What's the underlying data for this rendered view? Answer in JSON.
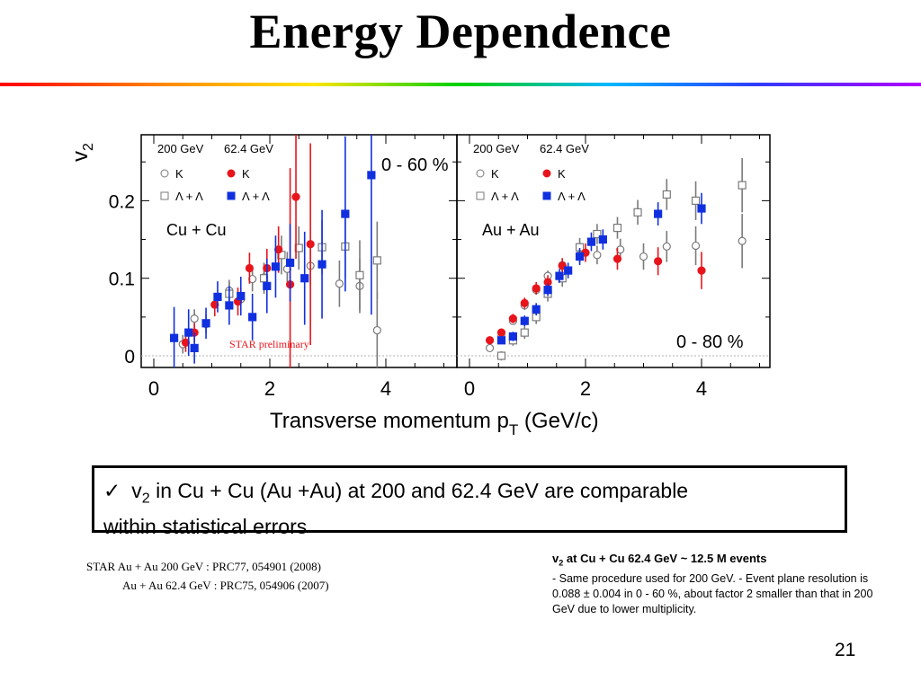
{
  "title": "Energy Dependence",
  "page_number": "21",
  "colors": {
    "red": "#e8141c",
    "blue": "#1030e0",
    "open": "#7a7a7a",
    "rule": "#b0b0b0"
  },
  "box": {
    "check": "✓",
    "v": "v",
    "sub": "2",
    "rest": " in Cu + Cu (Au +Au) at 200 and 62.4 GeV are  comparable",
    "line2": "within statistical errors"
  },
  "refs": {
    "line1": "STAR Au + Au 200 GeV : PRC77, 054901 (2008)",
    "line2": "Au + Au 62.4 GeV : PRC75, 054906 (2007",
    "line2_close": ")"
  },
  "note": {
    "v": "v",
    "sub": "2",
    "head": " at Cu + Cu 62.4 GeV ~ 12.5 M events",
    "body": "- Same procedure used for 200 GeV. - Event plane resolution is 0.088 ± 0.004 in 0 - 60 %, about factor 2 smaller than that in 200 GeV due to lower multiplicity."
  },
  "chart_data": {
    "type": "scatter",
    "ylabel": "v",
    "ylabel_sub": "2",
    "xlabel": "Transverse momentum p",
    "xlabel_sub": "T",
    "xlabel_unit": " (GeV/c)",
    "y_ticks": [
      "0",
      "0.1",
      "0.2"
    ],
    "x_ticks": [
      "0",
      "2",
      "4"
    ],
    "legend_head": [
      "200 GeV",
      "62.4 GeV"
    ],
    "legend_k": "K",
    "legend_lambda": "Λ + Λ",
    "panels": [
      {
        "system": "Cu + Cu",
        "centrality": "0 - 60 %",
        "annotation": "STAR preliminary",
        "xlim": [
          0,
          5.2
        ],
        "ylim": [
          -0.015,
          0.285
        ],
        "series": [
          {
            "marker": "open-circle",
            "points": [
              {
                "x": 0.5,
                "y": 0.015,
                "e": 0.012
              },
              {
                "x": 0.7,
                "y": 0.048,
                "e": 0.012
              },
              {
                "x": 0.9,
                "y": 0.041,
                "e": 0.012
              },
              {
                "x": 1.3,
                "y": 0.084,
                "e": 0.014
              },
              {
                "x": 1.5,
                "y": 0.073,
                "e": 0.015
              },
              {
                "x": 1.7,
                "y": 0.099,
                "e": 0.016
              },
              {
                "x": 1.9,
                "y": 0.101,
                "e": 0.018
              },
              {
                "x": 2.3,
                "y": 0.112,
                "e": 0.022
              },
              {
                "x": 2.7,
                "y": 0.116,
                "e": 0.025
              },
              {
                "x": 3.2,
                "y": 0.093,
                "e": 0.03
              },
              {
                "x": 3.55,
                "y": 0.09,
                "e": 0.035
              },
              {
                "x": 3.85,
                "y": 0.033,
                "e": 0.05
              }
            ]
          },
          {
            "marker": "open-square",
            "points": [
              {
                "x": 1.3,
                "y": 0.08,
                "e": 0.015
              },
              {
                "x": 1.9,
                "y": 0.1,
                "e": 0.02
              },
              {
                "x": 2.2,
                "y": 0.13,
                "e": 0.025
              },
              {
                "x": 2.5,
                "y": 0.139,
                "e": 0.028
              },
              {
                "x": 2.9,
                "y": 0.14,
                "e": 0.035
              },
              {
                "x": 3.3,
                "y": 0.141,
                "e": 0.04
              },
              {
                "x": 3.55,
                "y": 0.104,
                "e": 0.045
              },
              {
                "x": 3.85,
                "y": 0.123,
                "e": 0.05
              }
            ]
          },
          {
            "marker": "filled-circle",
            "points": [
              {
                "x": 0.55,
                "y": 0.017,
                "e": 0.012
              },
              {
                "x": 0.7,
                "y": 0.03,
                "e": 0.012
              },
              {
                "x": 1.05,
                "y": 0.066,
                "e": 0.015
              },
              {
                "x": 1.45,
                "y": 0.07,
                "e": 0.018
              },
              {
                "x": 1.65,
                "y": 0.113,
                "e": 0.02
              },
              {
                "x": 1.95,
                "y": 0.113,
                "e": 0.025
              },
              {
                "x": 2.15,
                "y": 0.137,
                "e": 0.03
              },
              {
                "x": 2.35,
                "y": 0.092,
                "e": 0.15
              },
              {
                "x": 2.45,
                "y": 0.205,
                "e": 0.08
              },
              {
                "x": 2.7,
                "y": 0.144,
                "e": 0.13
              }
            ]
          },
          {
            "marker": "filled-square",
            "points": [
              {
                "x": 0.35,
                "y": 0.023,
                "e": 0.04
              },
              {
                "x": 0.6,
                "y": 0.03,
                "e": 0.03
              },
              {
                "x": 0.7,
                "y": 0.01,
                "e": 0.02
              },
              {
                "x": 0.9,
                "y": 0.042,
                "e": 0.02
              },
              {
                "x": 1.1,
                "y": 0.076,
                "e": 0.02
              },
              {
                "x": 1.3,
                "y": 0.065,
                "e": 0.025
              },
              {
                "x": 1.5,
                "y": 0.077,
                "e": 0.025
              },
              {
                "x": 1.7,
                "y": 0.05,
                "e": 0.03
              },
              {
                "x": 1.95,
                "y": 0.09,
                "e": 0.035
              },
              {
                "x": 2.1,
                "y": 0.115,
                "e": 0.04
              },
              {
                "x": 2.35,
                "y": 0.12,
                "e": 0.05
              },
              {
                "x": 2.6,
                "y": 0.1,
                "e": 0.06
              },
              {
                "x": 2.9,
                "y": 0.118,
                "e": 0.07
              },
              {
                "x": 3.3,
                "y": 0.183,
                "e": 0.1
              },
              {
                "x": 3.75,
                "y": 0.233,
                "e": 0.18
              }
            ]
          }
        ]
      },
      {
        "system": "Au + Au",
        "centrality": "0 - 80 %",
        "annotation": "",
        "xlim": [
          0,
          5.2
        ],
        "ylim": [
          -0.015,
          0.285
        ],
        "series": [
          {
            "marker": "open-circle",
            "points": [
              {
                "x": 0.35,
                "y": 0.01,
                "e": 0.005
              },
              {
                "x": 0.55,
                "y": 0.025,
                "e": 0.005
              },
              {
                "x": 0.75,
                "y": 0.045,
                "e": 0.005
              },
              {
                "x": 0.95,
                "y": 0.065,
                "e": 0.006
              },
              {
                "x": 1.15,
                "y": 0.085,
                "e": 0.006
              },
              {
                "x": 1.35,
                "y": 0.103,
                "e": 0.007
              },
              {
                "x": 1.6,
                "y": 0.117,
                "e": 0.008
              },
              {
                "x": 1.9,
                "y": 0.13,
                "e": 0.01
              },
              {
                "x": 2.2,
                "y": 0.13,
                "e": 0.012
              },
              {
                "x": 2.6,
                "y": 0.137,
                "e": 0.014
              },
              {
                "x": 3.0,
                "y": 0.128,
                "e": 0.017
              },
              {
                "x": 3.4,
                "y": 0.141,
                "e": 0.02
              },
              {
                "x": 3.9,
                "y": 0.142,
                "e": 0.025
              },
              {
                "x": 4.7,
                "y": 0.148,
                "e": 0.035
              }
            ]
          },
          {
            "marker": "open-square",
            "points": [
              {
                "x": 0.55,
                "y": 0.0,
                "e": 0.006
              },
              {
                "x": 0.75,
                "y": 0.02,
                "e": 0.007
              },
              {
                "x": 0.95,
                "y": 0.03,
                "e": 0.008
              },
              {
                "x": 1.15,
                "y": 0.05,
                "e": 0.009
              },
              {
                "x": 1.35,
                "y": 0.08,
                "e": 0.01
              },
              {
                "x": 1.6,
                "y": 0.1,
                "e": 0.011
              },
              {
                "x": 1.9,
                "y": 0.14,
                "e": 0.012
              },
              {
                "x": 2.2,
                "y": 0.157,
                "e": 0.013
              },
              {
                "x": 2.55,
                "y": 0.165,
                "e": 0.014
              },
              {
                "x": 2.9,
                "y": 0.185,
                "e": 0.016
              },
              {
                "x": 3.4,
                "y": 0.208,
                "e": 0.02
              },
              {
                "x": 3.9,
                "y": 0.2,
                "e": 0.025
              },
              {
                "x": 4.7,
                "y": 0.22,
                "e": 0.035
              }
            ]
          },
          {
            "marker": "filled-circle",
            "points": [
              {
                "x": 0.35,
                "y": 0.02,
                "e": 0.005
              },
              {
                "x": 0.55,
                "y": 0.03,
                "e": 0.005
              },
              {
                "x": 0.75,
                "y": 0.048,
                "e": 0.006
              },
              {
                "x": 0.95,
                "y": 0.068,
                "e": 0.007
              },
              {
                "x": 1.15,
                "y": 0.087,
                "e": 0.008
              },
              {
                "x": 1.35,
                "y": 0.095,
                "e": 0.009
              },
              {
                "x": 1.6,
                "y": 0.116,
                "e": 0.01
              },
              {
                "x": 2.0,
                "y": 0.133,
                "e": 0.012
              },
              {
                "x": 2.55,
                "y": 0.125,
                "e": 0.014
              },
              {
                "x": 3.25,
                "y": 0.122,
                "e": 0.018
              },
              {
                "x": 4.0,
                "y": 0.11,
                "e": 0.024
              }
            ]
          },
          {
            "marker": "filled-square",
            "points": [
              {
                "x": 0.55,
                "y": 0.02,
                "e": 0.005
              },
              {
                "x": 0.75,
                "y": 0.025,
                "e": 0.006
              },
              {
                "x": 0.95,
                "y": 0.045,
                "e": 0.007
              },
              {
                "x": 1.15,
                "y": 0.06,
                "e": 0.008
              },
              {
                "x": 1.35,
                "y": 0.085,
                "e": 0.008
              },
              {
                "x": 1.55,
                "y": 0.103,
                "e": 0.009
              },
              {
                "x": 1.7,
                "y": 0.11,
                "e": 0.01
              },
              {
                "x": 1.9,
                "y": 0.128,
                "e": 0.011
              },
              {
                "x": 2.1,
                "y": 0.147,
                "e": 0.012
              },
              {
                "x": 2.3,
                "y": 0.15,
                "e": 0.013
              },
              {
                "x": 3.25,
                "y": 0.183,
                "e": 0.015
              },
              {
                "x": 4.0,
                "y": 0.19,
                "e": 0.02
              }
            ]
          }
        ]
      }
    ]
  }
}
